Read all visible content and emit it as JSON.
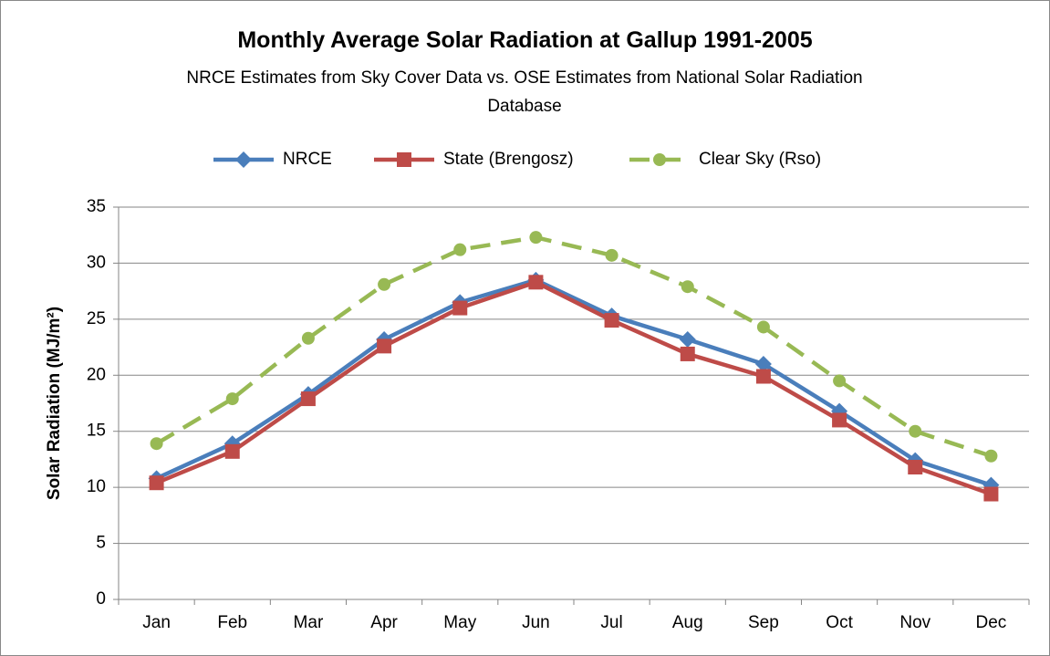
{
  "chart_data": {
    "type": "line",
    "title": "Monthly Average Solar Radiation at Gallup 1991-2005",
    "subtitle": "NRCE Estimates from Sky Cover Data vs. OSE Estimates from National Solar Radiation Database",
    "y_label": "Solar Radiation (MJ/m²)",
    "categories": [
      "Jan",
      "Feb",
      "Mar",
      "Apr",
      "May",
      "Jun",
      "Jul",
      "Aug",
      "Sep",
      "Oct",
      "Nov",
      "Dec"
    ],
    "series": [
      {
        "name": "NRCE",
        "color": "#4a7ebb",
        "marker": "diamond",
        "dashed": false,
        "values": [
          10.8,
          13.9,
          18.3,
          23.2,
          26.5,
          28.5,
          25.3,
          23.2,
          21.0,
          16.8,
          12.4,
          10.2
        ]
      },
      {
        "name": "State (Brengosz)",
        "color": "#be4b48",
        "marker": "square",
        "dashed": false,
        "values": [
          10.4,
          13.2,
          17.9,
          22.6,
          26.0,
          28.3,
          24.9,
          21.9,
          19.9,
          16.0,
          11.8,
          9.4
        ]
      },
      {
        "name": "Clear Sky (Rso)",
        "color": "#98b954",
        "marker": "circle",
        "dashed": true,
        "values": [
          13.9,
          17.9,
          23.3,
          28.1,
          31.2,
          32.3,
          30.7,
          27.9,
          24.3,
          19.5,
          15.0,
          12.8
        ]
      }
    ],
    "ylim": [
      0,
      35
    ],
    "yticks": [
      0,
      5,
      10,
      15,
      20,
      25,
      30,
      35
    ],
    "grid": true,
    "legend": "top"
  }
}
